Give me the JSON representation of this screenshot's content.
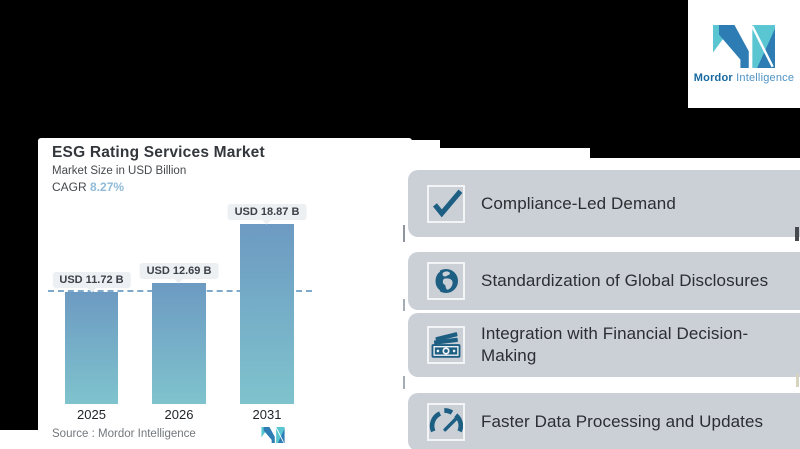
{
  "brand": {
    "name_bold": "Mordor",
    "name_light": "Intelligence",
    "logo_teal": "#59c6d2",
    "logo_blue": "#2e7cb4",
    "name_bold_color": "#17699f",
    "name_light_color": "#4e93c6"
  },
  "chart_card": {
    "title": "ESG Rating Services Market",
    "subtitle": "Market Size in USD Billion",
    "cagr_label": "CAGR",
    "cagr_value": "8.27%",
    "cagr_value_color": "#8fbbd9",
    "source_label": "Source :  Mordor Intelligence"
  },
  "chart_data": {
    "type": "bar",
    "title": "ESG Rating Services Market",
    "ylabel": "Market Size in USD Billion",
    "unit": "USD Billion",
    "cagr_percent": 8.27,
    "categories": [
      "2025",
      "2026",
      "2031"
    ],
    "values": [
      11.72,
      12.69,
      18.87
    ],
    "bar_labels": [
      "USD 11.72 B",
      "USD 12.69 B",
      "USD 18.87 B"
    ],
    "ylim": [
      0,
      18.87
    ],
    "dashed_reference_value": 11.72,
    "grid": "off",
    "bar_gradient_top": "#6d9ac2",
    "bar_gradient_bottom": "#7fc3cd",
    "dashed_line_color": "#7fa9ca",
    "source": "Mordor Intelligence"
  },
  "drivers": {
    "card_bg": "#cbd0d7",
    "icon_color": "#1d5e83",
    "items": [
      {
        "icon": "checkmark-icon",
        "label": "Compliance-Led Demand"
      },
      {
        "icon": "globe-icon",
        "label": "Standardization of Global Disclosures"
      },
      {
        "icon": "banknote-icon",
        "label": "Integration with Financial Decision-Making"
      },
      {
        "icon": "gauge-icon",
        "label": "Faster Data Processing and Updates"
      }
    ]
  }
}
